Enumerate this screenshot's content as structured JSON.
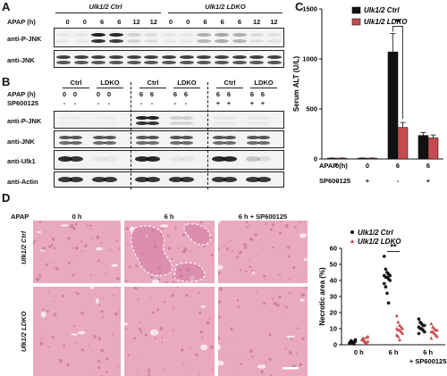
{
  "panels": {
    "A": "A",
    "B": "B",
    "C": "C",
    "D": "D"
  },
  "panelA": {
    "group_ctrl": "Ulk1/2 Ctrl",
    "group_ldko": "Ulk1/2 LDKO",
    "row_label": "APAP (h)",
    "apap": [
      "0",
      "0",
      "6",
      "6",
      "12",
      "12",
      "0",
      "0",
      "6",
      "6",
      "6",
      "12",
      "12"
    ],
    "blots": [
      "anti-P-JNK",
      "anti-JNK"
    ]
  },
  "panelB": {
    "groups": [
      "Ctrl",
      "LDKO",
      "Ctrl",
      "LDKO",
      "Ctrl",
      "LDKO"
    ],
    "apap_label": "APAP (h)",
    "sp_label": "SP600125",
    "apap": [
      "0",
      "0",
      "0",
      "0",
      "6",
      "6",
      "6",
      "6",
      "6",
      "6",
      "6",
      "6"
    ],
    "sp": [
      "-",
      "-",
      "-",
      "-",
      "-",
      "-",
      "-",
      "-",
      "+",
      "+",
      "+",
      "+"
    ],
    "blots": [
      "anti-P-JNK",
      "anti-JNK",
      "anti-Ulk1",
      "anti-Actin"
    ]
  },
  "panelC": {
    "legend": [
      "Ulk1/2 Ctrl",
      "Ulk1/2 LDKO"
    ],
    "apap_row_label": "APAP (h)",
    "sp_row_label": "SP600125",
    "apap_values": [
      "0",
      "0",
      "6",
      "6"
    ],
    "sp_values": [
      "-",
      "+",
      "-",
      "+"
    ],
    "significance": "**"
  },
  "panelD": {
    "apap_label": "APAP",
    "col_titles": [
      "0 h",
      "6 h",
      "6 h + SP600125"
    ],
    "row_titles": [
      "Ulk1/2 Ctrl",
      "Ulk1/2 LDKO"
    ],
    "scatter_legend": [
      "Ulk1/2 Ctrl",
      "Ulk1/2 LDKO"
    ],
    "scatter_xlabels": [
      "0 h",
      "6 h",
      "6 h",
      "+ SP600125"
    ],
    "significance": "**"
  },
  "chart_data": [
    {
      "type": "bar",
      "ylabel": "Serum ALT (U/L)",
      "ylim": [
        0,
        1500
      ],
      "yticks": [
        "0",
        "500",
        "1000",
        "1500"
      ],
      "categories": [
        "0 h / -",
        "0 h / +",
        "6 h / -",
        "6 h / +"
      ],
      "series": [
        {
          "name": "Ulk1/2 Ctrl",
          "color": "#111111",
          "values": [
            8,
            8,
            1070,
            235
          ],
          "errors": [
            2,
            2,
            185,
            28
          ]
        },
        {
          "name": "Ulk1/2 LDKO",
          "color": "#c64b4f",
          "values": [
            8,
            8,
            315,
            210
          ],
          "errors": [
            2,
            2,
            50,
            30
          ]
        }
      ]
    },
    {
      "type": "scatter",
      "ylabel": "Necrotic area (%)",
      "ylim": [
        0,
        60
      ],
      "yticks": [
        "0",
        "10",
        "20",
        "30",
        "40",
        "50",
        "60"
      ],
      "categories": [
        "0 h",
        "6 h",
        "6 h + SP600125"
      ],
      "series": [
        {
          "name": "Ulk1/2 Ctrl",
          "color": "#111111",
          "values": [
            [
              1,
              2,
              1.5,
              0.5,
              3,
              1,
              2.5,
              0.8,
              1.8,
              2.2,
              1.2
            ],
            [
              55,
              47,
              45,
              44,
              43,
              43,
              42,
              42,
              41,
              40,
              38,
              36,
              32,
              26
            ],
            [
              16,
              14,
              13,
              12,
              12,
              11,
              10,
              10,
              9,
              8,
              7
            ]
          ]
        },
        {
          "name": "Ulk1/2 LDKO",
          "color": "#c64b4f",
          "values": [
            [
              3,
              4,
              2,
              1,
              5,
              3.5,
              2.5,
              1.5,
              4.5,
              2
            ],
            [
              18,
              14,
              12,
              11,
              10,
              10,
              9,
              9,
              8,
              7,
              6,
              5,
              3
            ],
            [
              13,
              11,
              10,
              9,
              9,
              8,
              8,
              7,
              6,
              5,
              4
            ]
          ]
        }
      ]
    }
  ]
}
